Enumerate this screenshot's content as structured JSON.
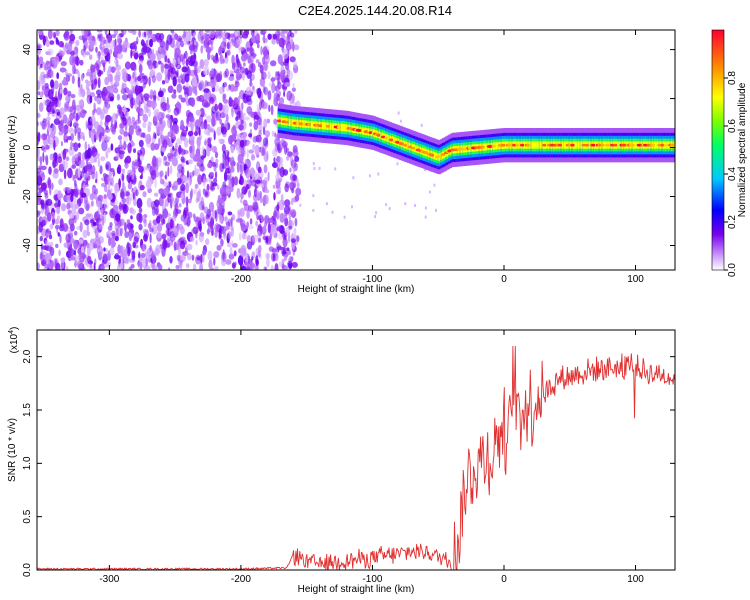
{
  "title": "C2E4.2025.144.20.08.R14",
  "chart_data": [
    {
      "type": "heatmap",
      "xlabel": "Height of straight line (km)",
      "ylabel": "Frequency (Hz)",
      "xlim": [
        -355,
        130
      ],
      "ylim": [
        -50,
        48
      ],
      "xticks": [
        -300,
        -200,
        -100,
        0,
        100
      ],
      "yticks": [
        -40,
        -20,
        0,
        20,
        40
      ],
      "noise_region_x": [
        -355,
        -160
      ],
      "ridge": {
        "x": [
          -172,
          -160,
          -140,
          -120,
          -100,
          -80,
          -60,
          -50,
          -40,
          -20,
          0,
          20,
          50,
          80,
          100,
          130
        ],
        "y": [
          11,
          10,
          9,
          8,
          6,
          2,
          -2,
          -4,
          -1,
          0,
          1,
          1,
          1,
          1,
          1,
          1
        ]
      },
      "colorbar": {
        "label": "Normalized spectral amplitude",
        "range": [
          0.0,
          1.0
        ],
        "ticks": [
          0.0,
          0.2,
          0.4,
          0.6,
          0.8
        ]
      },
      "grid": false
    },
    {
      "type": "line",
      "xlabel": "Height of straight line (km)",
      "ylabel": "SNR (10 * v/v)",
      "yscale_note": "(x10^4)",
      "xlim": [
        -355,
        130
      ],
      "ylim": [
        0,
        2.25
      ],
      "xticks": [
        -300,
        -200,
        -100,
        0,
        100
      ],
      "yticks": [
        0.0,
        0.5,
        1.0,
        1.5,
        2.0
      ],
      "color": "#e03030",
      "series": [
        {
          "x": [
            -355,
            -300,
            -250,
            -200,
            -165,
            -160,
            -150,
            -140,
            -130,
            -120,
            -110,
            -100,
            -90,
            -80,
            -70,
            -60,
            -50,
            -40,
            -35,
            -30,
            -25,
            -20,
            -15,
            -10,
            -5,
            0,
            5,
            10,
            20,
            30,
            40,
            50,
            60,
            70,
            80,
            90,
            95,
            100,
            110,
            120,
            130
          ],
          "y": [
            0.01,
            0.01,
            0.01,
            0.01,
            0.02,
            0.15,
            0.08,
            0.06,
            0.08,
            0.09,
            0.1,
            0.12,
            0.13,
            0.15,
            0.17,
            0.18,
            0.12,
            0.1,
            0.25,
            0.75,
            0.9,
            1.0,
            1.05,
            1.05,
            1.25,
            1.3,
            1.3,
            1.45,
            1.55,
            1.65,
            1.78,
            1.82,
            1.85,
            1.88,
            1.9,
            1.9,
            1.95,
            1.9,
            1.85,
            1.83,
            1.8
          ]
        }
      ],
      "grid": false
    }
  ]
}
